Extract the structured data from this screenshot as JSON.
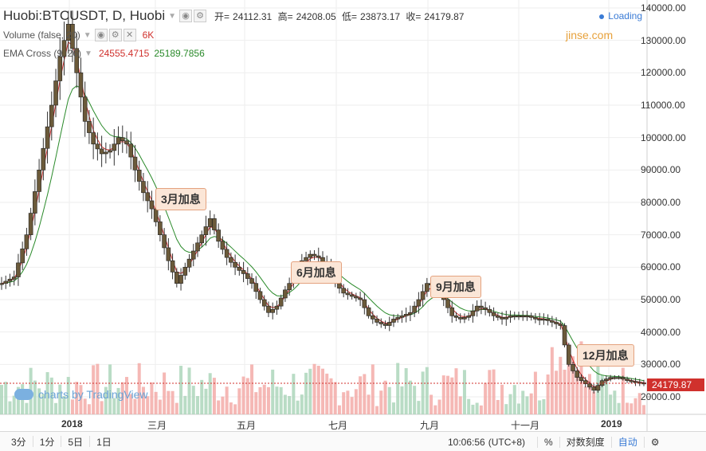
{
  "header": {
    "symbol": "Huobi:BTCUSDT, D, Huobi",
    "ohlc": {
      "open_label": "开=",
      "open": "24112.31",
      "high_label": "高=",
      "high": "24208.05",
      "low_label": "低=",
      "low": "23873.17",
      "close_label": "收=",
      "close": "24179.87"
    },
    "volume_label": "Volume (false, 20)",
    "volume_value": "6K",
    "ema_label": "EMA Cross (9, 26)",
    "ema_fast": "24555.4715",
    "ema_slow": "25189.7856",
    "loading": "Loading",
    "brand": "jinse.com",
    "watermark": "charts by TradingView"
  },
  "annotations": [
    "3月加息",
    "6月加息",
    "9月加息",
    "12月加息"
  ],
  "price_axis": {
    "ticks": [
      "140000.00",
      "130000.00",
      "120000.00",
      "110000.00",
      "100000.00",
      "90000.00",
      "80000.00",
      "70000.00",
      "60000.00",
      "50000.00",
      "40000.00",
      "30000.00",
      "20000.00"
    ],
    "last_price": "24179.87"
  },
  "time_axis": [
    "2018",
    "三月",
    "五月",
    "七月",
    "九月",
    "十一月",
    "2019"
  ],
  "bottom_bar": {
    "ranges": [
      "3分",
      "1分",
      "5日",
      "1日"
    ],
    "time": "10:06:56",
    "timezone": "(UTC+8)",
    "percent": "%",
    "log_scale": "对数刻度",
    "auto": "自动"
  },
  "chart_data": {
    "type": "candlestick",
    "ylim": [
      15000,
      140000
    ],
    "x_months": [
      "2018-01",
      "2018-12"
    ],
    "close_series": [
      [
        0,
        55000
      ],
      [
        3,
        57000
      ],
      [
        6,
        70000
      ],
      [
        9,
        90000
      ],
      [
        12,
        110000
      ],
      [
        14,
        125000
      ],
      [
        16,
        135000
      ],
      [
        18,
        120000
      ],
      [
        20,
        105000
      ],
      [
        22,
        98000
      ],
      [
        24,
        95000
      ],
      [
        26,
        96000
      ],
      [
        28,
        100000
      ],
      [
        30,
        98000
      ],
      [
        32,
        90000
      ],
      [
        34,
        83000
      ],
      [
        36,
        78000
      ],
      [
        38,
        70000
      ],
      [
        40,
        62000
      ],
      [
        42,
        55000
      ],
      [
        44,
        60000
      ],
      [
        46,
        65000
      ],
      [
        48,
        70000
      ],
      [
        50,
        75000
      ],
      [
        52,
        68000
      ],
      [
        54,
        63000
      ],
      [
        56,
        60000
      ],
      [
        58,
        58000
      ],
      [
        60,
        55000
      ],
      [
        62,
        50000
      ],
      [
        64,
        46000
      ],
      [
        66,
        48000
      ],
      [
        68,
        53000
      ],
      [
        70,
        57000
      ],
      [
        72,
        62000
      ],
      [
        74,
        64000
      ],
      [
        76,
        63000
      ],
      [
        78,
        60000
      ],
      [
        80,
        55000
      ],
      [
        82,
        52000
      ],
      [
        84,
        51000
      ],
      [
        86,
        50000
      ],
      [
        88,
        45000
      ],
      [
        90,
        43000
      ],
      [
        92,
        42000
      ],
      [
        94,
        44000
      ],
      [
        96,
        45000
      ],
      [
        98,
        46000
      ],
      [
        100,
        50000
      ],
      [
        102,
        55000
      ],
      [
        104,
        54000
      ],
      [
        106,
        50000
      ],
      [
        108,
        45000
      ],
      [
        110,
        44000
      ],
      [
        112,
        45000
      ],
      [
        114,
        48000
      ],
      [
        116,
        47000
      ],
      [
        118,
        45000
      ],
      [
        120,
        44000
      ],
      [
        122,
        45000
      ],
      [
        124,
        45000
      ],
      [
        126,
        45000
      ],
      [
        128,
        44000
      ],
      [
        130,
        44000
      ],
      [
        132,
        43000
      ],
      [
        134,
        42000
      ],
      [
        136,
        30000
      ],
      [
        138,
        26000
      ],
      [
        140,
        24000
      ],
      [
        142,
        22000
      ],
      [
        144,
        25000
      ],
      [
        146,
        26000
      ],
      [
        148,
        26000
      ],
      [
        150,
        25000
      ],
      [
        152,
        24500
      ],
      [
        154,
        24179
      ]
    ],
    "ema_fast_color": "#d0312d",
    "ema_slow_color": "#2a8a2a",
    "up_color": "#3a3a3a",
    "down_color": "#3a3a3a",
    "volume_up_color": "#a7d3b6",
    "volume_down_color": "#f2a6a3"
  }
}
